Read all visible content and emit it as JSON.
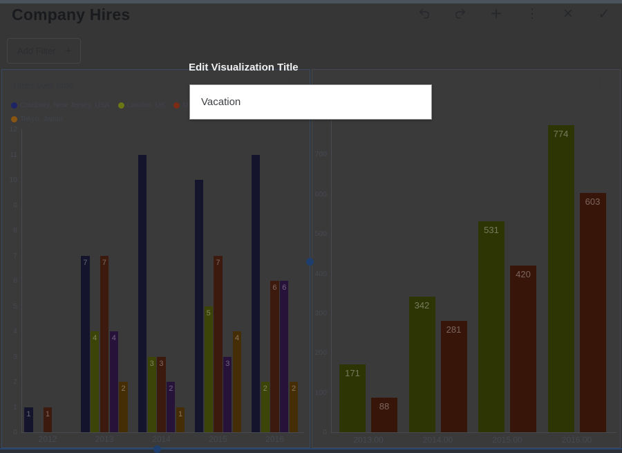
{
  "header": {
    "title": "Company Hires"
  },
  "icons": {
    "undo": "undo-arrow",
    "redo": "redo-arrow",
    "add": "+",
    "more": "⋮",
    "close": "✕",
    "confirm": "✓",
    "card_menu": "⋮",
    "add_filter_plus": "+"
  },
  "filter_bar": {
    "add_filter_label": "Add Filter"
  },
  "dialog": {
    "title": "Edit Visualization Title",
    "input_value": "Vacation"
  },
  "selection": {
    "selected_card": "Hires over time",
    "accent_color": "#1e3e6d"
  },
  "chart_data": [
    {
      "type": "bar",
      "title": "Hires over time",
      "categories": [
        "2012",
        "2013",
        "2014",
        "2015",
        "2016"
      ],
      "series": [
        {
          "name": "Cranbury, New Jersey, USA",
          "color": "#14152c",
          "legend_color": "#1e2366",
          "legend_row": 1,
          "values": [
            1,
            7,
            11,
            10,
            11
          ]
        },
        {
          "name": "London, UK",
          "color": "#3c4408",
          "legend_color": "#6b7614",
          "legend_row": 1,
          "values": [
            0,
            4,
            3,
            5,
            2
          ]
        },
        {
          "name": "Montevideo, Uruguay",
          "color": "#3d1a0e",
          "legend_color": "#7c2b15",
          "legend_row": 1,
          "values": [
            1,
            7,
            3,
            7,
            6
          ]
        },
        {
          "name": "",
          "color": "#27123a",
          "legend_color": "#4a2070",
          "legend_row": 0,
          "values": [
            0,
            4,
            2,
            3,
            6
          ]
        },
        {
          "name": "Tokyo, Japan",
          "color": "#452d06",
          "legend_color": "#8a5510",
          "legend_row": 2,
          "values": [
            0,
            2,
            1,
            4,
            2
          ]
        }
      ],
      "ylim": [
        0,
        12
      ],
      "yticks": [
        0,
        1,
        2,
        3,
        4,
        5,
        6,
        7,
        8,
        9,
        10,
        11,
        12
      ],
      "bar_label_max": 7,
      "legend_position": "top",
      "grid": false
    },
    {
      "type": "bar",
      "title": "",
      "categories": [
        "2013.00",
        "2014.00",
        "2015.00",
        "2016.00"
      ],
      "series": [
        {
          "name": "",
          "color": "#2e3505",
          "legend_row": 0,
          "values": [
            171,
            342,
            531,
            774
          ]
        },
        {
          "name": "",
          "color": "#371509",
          "legend_row": 0,
          "values": [
            88,
            281,
            420,
            603
          ]
        }
      ],
      "ylim": [
        0,
        780
      ],
      "yticks": [
        0,
        100,
        200,
        300,
        400,
        500,
        600,
        700
      ],
      "grid": false
    }
  ]
}
